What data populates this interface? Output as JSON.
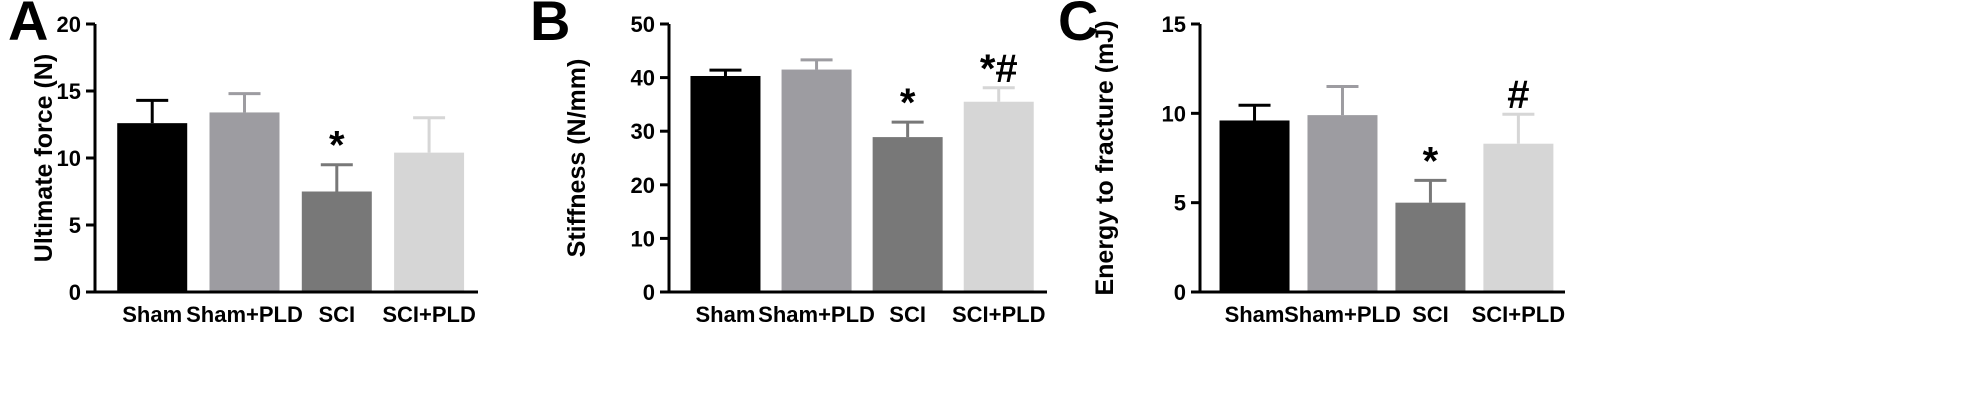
{
  "chart_data": [
    {
      "panel": "A",
      "type": "bar",
      "ylabel": "Ultimate force (N)",
      "xlabel": "",
      "ylim": [
        0,
        20
      ],
      "yticks": [
        "0",
        "5",
        "10",
        "15",
        "20"
      ],
      "yticks_values": [
        0,
        5,
        10,
        15,
        20
      ],
      "categories": [
        "Sham",
        "Sham+PLD",
        "SCI",
        "SCI+PLD"
      ],
      "values": [
        12.6,
        13.4,
        7.5,
        10.4
      ],
      "errors": [
        1.7,
        1.4,
        2.0,
        2.6
      ],
      "significance": [
        "",
        "",
        "*",
        ""
      ],
      "colors": [
        "#000000",
        "#9d9ca1",
        "#787878",
        "#d6d6d6"
      ],
      "grid": false
    },
    {
      "panel": "B",
      "type": "bar",
      "ylabel": "Stiffness (N/mm)",
      "xlabel": "",
      "ylim": [
        0,
        50
      ],
      "yticks": [
        "0",
        "10",
        "20",
        "30",
        "40",
        "50"
      ],
      "yticks_values": [
        0,
        10,
        20,
        30,
        40,
        50
      ],
      "categories": [
        "Sham",
        "Sham+PLD",
        "SCI",
        "SCI+PLD"
      ],
      "values": [
        40.3,
        41.5,
        28.9,
        35.5
      ],
      "errors": [
        1.1,
        1.8,
        2.8,
        2.6
      ],
      "significance": [
        "",
        "",
        "*",
        "*#"
      ],
      "colors": [
        "#000000",
        "#9d9ca1",
        "#787878",
        "#d6d6d6"
      ],
      "grid": false
    },
    {
      "panel": "C",
      "type": "bar",
      "ylabel": "Energy to fracture (mJ)",
      "xlabel": "",
      "ylim": [
        0,
        15
      ],
      "yticks": [
        "0",
        "5",
        "10",
        "15"
      ],
      "yticks_values": [
        0,
        5,
        10,
        15
      ],
      "categories": [
        "Sham",
        "Sham+PLD",
        "SCI",
        "SCI+PLD"
      ],
      "values": [
        9.6,
        9.9,
        5.0,
        8.3
      ],
      "errors": [
        0.85,
        1.6,
        1.25,
        1.65
      ],
      "significance": [
        "",
        "",
        "*",
        "#"
      ],
      "colors": [
        "#000000",
        "#9d9ca1",
        "#787878",
        "#d6d6d6"
      ],
      "grid": false
    }
  ]
}
